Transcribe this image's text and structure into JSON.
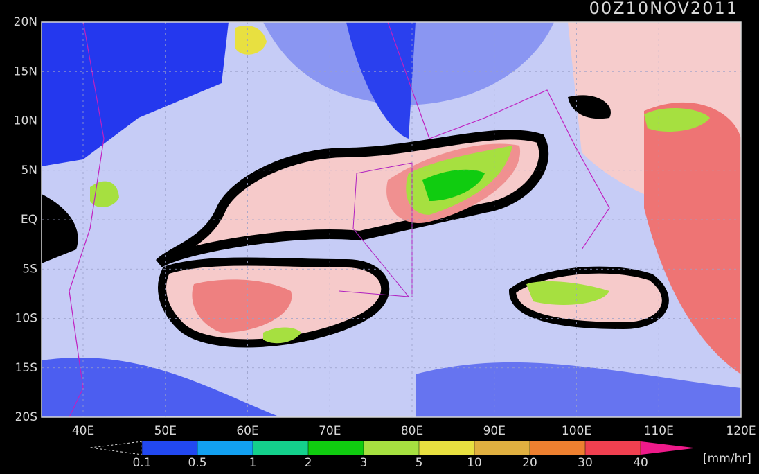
{
  "title": "00Z10NOV2011",
  "map": {
    "lat_labels": [
      "20N",
      "15N",
      "10N",
      "5N",
      "EQ",
      "5S",
      "10S",
      "15S",
      "20S"
    ],
    "lon_labels": [
      "40E",
      "50E",
      "60E",
      "70E",
      "80E",
      "90E",
      "100E",
      "110E",
      "120E"
    ]
  },
  "colorbar": {
    "levels": [
      0.1,
      0.5,
      1,
      2,
      3,
      5,
      10,
      20,
      30,
      40
    ],
    "colors": [
      "#2248f0",
      "#12a0f0",
      "#14d08c",
      "#10cc10",
      "#a6e040",
      "#e8e040",
      "#e0b040",
      "#ee8030",
      "#f04050"
    ],
    "over_color": "#ee1a8a",
    "unit": "[mm/hr]"
  }
}
